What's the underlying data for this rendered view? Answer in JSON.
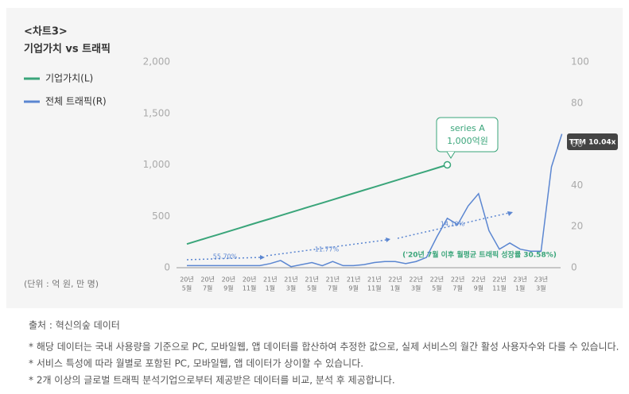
{
  "chart_data": {
    "type": "line",
    "label": "<차트3>",
    "title": "기업가치 vs 트래픽",
    "unit_note": "(단위 : 억 원, 만 명)",
    "categories": [
      [
        "20년",
        "5월"
      ],
      null,
      [
        "20년",
        "7월"
      ],
      null,
      [
        "20년",
        "9월"
      ],
      null,
      [
        "20년",
        "11월"
      ],
      null,
      [
        "21년",
        "1월"
      ],
      null,
      [
        "21년",
        "3월"
      ],
      null,
      [
        "21년",
        "5월"
      ],
      null,
      [
        "21년",
        "7월"
      ],
      null,
      [
        "21년",
        "9월"
      ],
      null,
      [
        "21년",
        "11월"
      ],
      null,
      [
        "22년",
        "1월"
      ],
      null,
      [
        "22년",
        "3월"
      ],
      null,
      [
        "22년",
        "5월"
      ],
      null,
      [
        "22년",
        "7월"
      ],
      null,
      [
        "22년",
        "9월"
      ],
      null,
      [
        "22년",
        "11월"
      ],
      null,
      [
        "23년",
        "1월"
      ],
      null,
      [
        "23년",
        "3월"
      ],
      null,
      null
    ],
    "series": [
      {
        "name": "기업가치(L)",
        "color": "#3aa57a",
        "axis": "y",
        "values": [
          230,
          261,
          292,
          322,
          353,
          384,
          415,
          446,
          476,
          507,
          538,
          569,
          600,
          630,
          661,
          692,
          723,
          754,
          784,
          815,
          846,
          877,
          908,
          938,
          969,
          1000,
          null,
          null,
          null,
          null,
          null,
          null,
          null,
          null,
          null,
          null,
          null
        ]
      },
      {
        "name": "전체 트래픽(R)",
        "color": "#5b86d1",
        "axis": "y2",
        "values": [
          1,
          1,
          1,
          1,
          1,
          1,
          1,
          1,
          2,
          3.5,
          0.5,
          1.5,
          2.5,
          1,
          3,
          1,
          1,
          1.5,
          2.5,
          3,
          3,
          2,
          3,
          5,
          15,
          24,
          21,
          30,
          36,
          18,
          9,
          12,
          9,
          8,
          8,
          49,
          65
        ]
      }
    ],
    "ylim": [
      0,
      2000
    ],
    "yticks": [
      0,
      500,
      {
        "value": 1000,
        "label": "1,000"
      },
      {
        "value": 1500,
        "label": "1,500"
      },
      {
        "value": 2000,
        "label": "2,000"
      }
    ],
    "y2lim": [
      0,
      100
    ],
    "y2ticks": [
      0,
      20,
      40,
      60,
      80,
      100
    ],
    "annotations": {
      "callout": [
        "series A",
        "1,000억원"
      ],
      "badge": "TTM 10.04x",
      "growth_1": "55.70%",
      "growth_2": "11.77%",
      "growth_3": "14.10%",
      "growth_note": "('20년 7월 이후 월평균 트래픽 성장률 30.58%)"
    }
  },
  "footer": {
    "source": "출처 : 혁신의숲 데이터",
    "notes": [
      "* 해당 데이터는 국내 사용량을 기준으로 PC, 모바일웹, 앱 데이터를 합산하여 추정한 값으로, 실제 서비스의 월간 활성 사용자수와 다를 수 있습니다.",
      "* 서비스 특성에 따라 월별로 포함된 PC, 모바일웹, 앱 데이터가 상이할 수 있습니다.",
      "* 2개 이상의 글로벌 트래픽 분석기업으로부터 제공받은 데이터를 비교, 분석 후 제공합니다."
    ]
  }
}
